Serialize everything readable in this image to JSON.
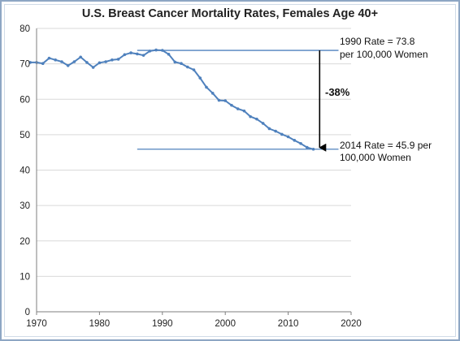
{
  "chart_data": {
    "type": "line",
    "title": "U.S. Breast Cancer Mortality Rates, Females Age 40+",
    "xlabel": "",
    "ylabel": "",
    "xlim": [
      1970,
      2020
    ],
    "ylim": [
      0,
      80
    ],
    "xticks": [
      1970,
      1980,
      1990,
      2000,
      2010,
      2020
    ],
    "yticks": [
      0,
      10,
      20,
      30,
      40,
      50,
      60,
      70,
      80
    ],
    "grid": "horizontal",
    "colors": {
      "series": "#4f81bd",
      "reference": "#4f81bd",
      "arrow": "#000000",
      "grid": "#d9d9d9",
      "frame": "#8ea6c4"
    },
    "series": [
      {
        "x": [
          1969,
          1970,
          1971,
          1972,
          1973,
          1974,
          1975,
          1976,
          1977,
          1978,
          1979,
          1980,
          1981,
          1982,
          1983,
          1984,
          1985,
          1986,
          1987,
          1988,
          1989,
          1990,
          1991,
          1992,
          1993,
          1994,
          1995,
          1996,
          1997,
          1998,
          1999,
          2000,
          2001,
          2002,
          2003,
          2004,
          2005,
          2006,
          2007,
          2008,
          2009,
          2010,
          2011,
          2012,
          2013,
          2014
        ],
        "values": [
          70.4,
          70.4,
          70.1,
          71.6,
          71.1,
          70.6,
          69.5,
          70.6,
          71.9,
          70.4,
          69.0,
          70.3,
          70.6,
          71.1,
          71.3,
          72.6,
          73.1,
          72.8,
          72.4,
          73.6,
          73.9,
          73.8,
          72.7,
          70.5,
          70.1,
          69.1,
          68.3,
          66.0,
          63.4,
          61.7,
          59.7,
          59.6,
          58.3,
          57.3,
          56.7,
          55.1,
          54.4,
          53.2,
          51.7,
          51.0,
          50.1,
          49.4,
          48.4,
          47.5,
          46.4,
          45.9
        ]
      }
    ],
    "reference_lines": [
      {
        "from": 1986,
        "to": 2018,
        "y": 73.8
      },
      {
        "from": 1986,
        "to": 2018,
        "y": 45.9
      }
    ],
    "arrow": {
      "x": 2015,
      "from": 73.8,
      "to": 45.9
    },
    "annotations": {
      "rate_1990_line1": "1990 Rate = 73.8",
      "rate_1990_line2": "per 100,000 Women",
      "change": "-38%",
      "rate_2014_line1": "2014 Rate = 45.9 per",
      "rate_2014_line2": "100,000 Women"
    }
  }
}
